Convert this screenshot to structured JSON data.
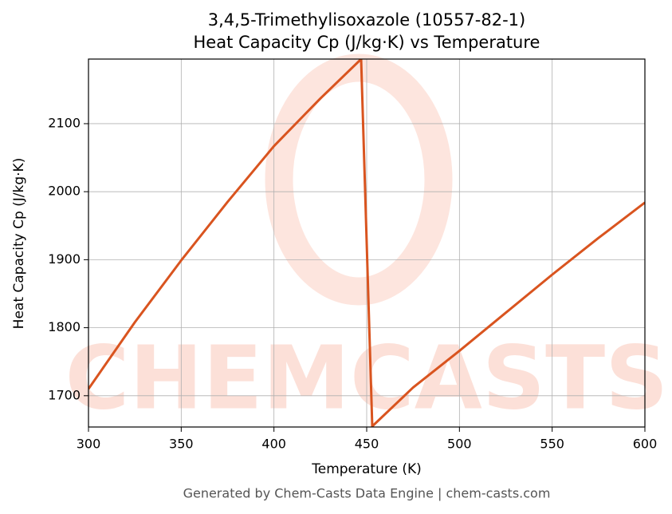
{
  "chart_data": {
    "type": "line",
    "title": "3,4,5-Trimethylisoxazole (10557-82-1)",
    "subtitle": "Heat Capacity Cp (J/kg·K) vs Temperature",
    "xlabel": "Temperature (K)",
    "ylabel": "Heat Capacity Cp (J/kg·K)",
    "footer": "Generated by Chem-Casts Data Engine | chem-casts.com",
    "watermark": "CHEMCASTS",
    "x": [
      300,
      325,
      350,
      375,
      400,
      425,
      447,
      453,
      475,
      500,
      525,
      550,
      575,
      600
    ],
    "series": [
      {
        "name": "Cp",
        "color": "#d9541f",
        "values": [
          1710,
          1808,
          1899,
          1985,
          2067,
          2137,
          2195,
          1655,
          1712,
          1766,
          1822,
          1878,
          1932,
          1984
        ]
      }
    ],
    "xlim": [
      300,
      600
    ],
    "ylim": [
      1654,
      2195
    ],
    "xticks": [
      300,
      350,
      400,
      450,
      500,
      550,
      600
    ],
    "yticks": [
      1700,
      1800,
      1900,
      2000,
      2100
    ],
    "grid": true
  }
}
